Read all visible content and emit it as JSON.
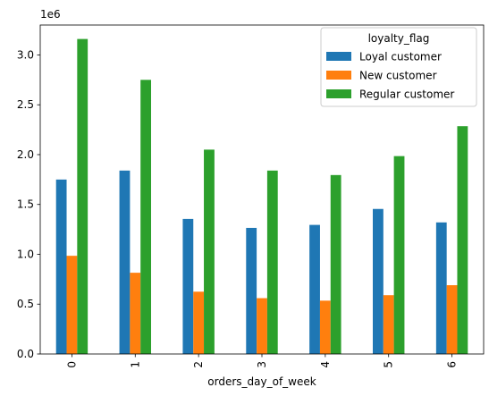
{
  "chart_data": {
    "type": "bar",
    "categories": [
      "0",
      "1",
      "2",
      "3",
      "4",
      "5",
      "6"
    ],
    "series": [
      {
        "name": "Loyal customer",
        "color": "#1f77b4",
        "values": [
          1750000,
          1840000,
          1355000,
          1265000,
          1295000,
          1455000,
          1320000
        ]
      },
      {
        "name": "New customer",
        "color": "#ff7f0e",
        "values": [
          985000,
          815000,
          625000,
          560000,
          535000,
          590000,
          690000
        ]
      },
      {
        "name": "Regular customer",
        "color": "#2ca02c",
        "values": [
          3160000,
          2750000,
          2050000,
          1840000,
          1795000,
          1985000,
          2285000
        ]
      }
    ],
    "xlabel": "orders_day_of_week",
    "ylabel": "",
    "ylim": [
      0,
      3300000
    ],
    "yticks": [
      0,
      500000,
      1000000,
      1500000,
      2000000,
      2500000,
      3000000
    ],
    "ytick_labels": [
      "0.0",
      "0.5",
      "1.0",
      "1.5",
      "2.0",
      "2.5",
      "3.0"
    ],
    "offset_label": "1e6",
    "legend": {
      "title": "loyalty_flag",
      "position": "top-right"
    },
    "grid": false
  }
}
